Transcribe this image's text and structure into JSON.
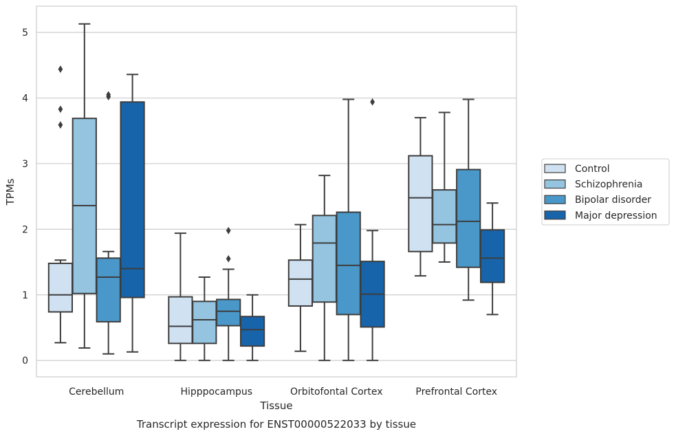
{
  "chart_data": {
    "type": "box",
    "title": "Transcript expression for ENST00000522033 by tissue",
    "xlabel": "Tissue",
    "ylabel": "TPMs",
    "ylim": [
      -0.25,
      5.4
    ],
    "yticks": [
      0,
      1,
      2,
      3,
      4,
      5
    ],
    "grid": "horizontal",
    "legend_position": "right",
    "categories": [
      "Cerebellum",
      "Hipppocampus",
      "Orbitofontal Cortex",
      "Prefrontal Cortex"
    ],
    "series": [
      {
        "name": "Control",
        "color": "#d0e1f2",
        "boxes": [
          {
            "whisker_low": 0.27,
            "q1": 0.74,
            "median": 1.0,
            "q3": 1.48,
            "whisker_high": 1.53,
            "outliers": [
              3.59,
              3.83,
              4.44
            ]
          },
          {
            "whisker_low": 0.0,
            "q1": 0.26,
            "median": 0.52,
            "q3": 0.97,
            "whisker_high": 1.94,
            "outliers": []
          },
          {
            "whisker_low": 0.14,
            "q1": 0.83,
            "median": 1.24,
            "q3": 1.53,
            "whisker_high": 2.07,
            "outliers": []
          },
          {
            "whisker_low": 1.29,
            "q1": 1.66,
            "median": 2.48,
            "q3": 3.12,
            "whisker_high": 3.7,
            "outliers": []
          }
        ]
      },
      {
        "name": "Schizophrenia",
        "color": "#94c4df",
        "boxes": [
          {
            "whisker_low": 0.19,
            "q1": 1.02,
            "median": 2.36,
            "q3": 3.69,
            "whisker_high": 5.13,
            "outliers": []
          },
          {
            "whisker_low": 0.0,
            "q1": 0.26,
            "median": 0.62,
            "q3": 0.9,
            "whisker_high": 1.27,
            "outliers": []
          },
          {
            "whisker_low": 0.0,
            "q1": 0.89,
            "median": 1.79,
            "q3": 2.21,
            "whisker_high": 2.82,
            "outliers": []
          },
          {
            "whisker_low": 1.5,
            "q1": 1.79,
            "median": 2.07,
            "q3": 2.6,
            "whisker_high": 3.78,
            "outliers": []
          }
        ]
      },
      {
        "name": "Bipolar disorder",
        "color": "#4a98c9",
        "boxes": [
          {
            "whisker_low": 0.1,
            "q1": 0.59,
            "median": 1.27,
            "q3": 1.56,
            "whisker_high": 1.66,
            "outliers": [
              4.02,
              4.05
            ]
          },
          {
            "whisker_low": 0.0,
            "q1": 0.53,
            "median": 0.75,
            "q3": 0.93,
            "whisker_high": 1.39,
            "outliers": [
              1.55,
              1.98
            ]
          },
          {
            "whisker_low": 0.0,
            "q1": 0.7,
            "median": 1.45,
            "q3": 2.26,
            "whisker_high": 3.98,
            "outliers": []
          },
          {
            "whisker_low": 0.92,
            "q1": 1.42,
            "median": 2.12,
            "q3": 2.91,
            "whisker_high": 3.98,
            "outliers": []
          }
        ]
      },
      {
        "name": "Major depression",
        "color": "#1764ab",
        "boxes": [
          {
            "whisker_low": 0.13,
            "q1": 0.96,
            "median": 1.4,
            "q3": 3.94,
            "whisker_high": 4.36,
            "outliers": []
          },
          {
            "whisker_low": 0.0,
            "q1": 0.22,
            "median": 0.47,
            "q3": 0.67,
            "whisker_high": 1.0,
            "outliers": []
          },
          {
            "whisker_low": 0.0,
            "q1": 0.51,
            "median": 1.01,
            "q3": 1.51,
            "whisker_high": 1.98,
            "outliers": [
              3.94
            ]
          },
          {
            "whisker_low": 0.7,
            "q1": 1.19,
            "median": 1.56,
            "q3": 1.99,
            "whisker_high": 2.4,
            "outliers": []
          }
        ]
      }
    ]
  }
}
